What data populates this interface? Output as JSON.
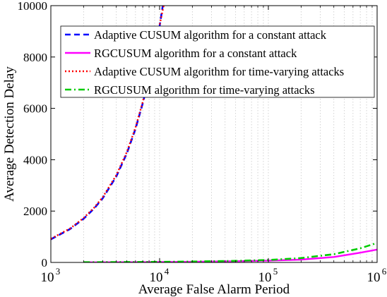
{
  "chart_data": {
    "type": "line",
    "title": "",
    "xlabel": "Average False Alarm Period",
    "ylabel": "Average Detection Delay",
    "xscale": "log",
    "xlim": [
      1000,
      1000000
    ],
    "ylim": [
      0,
      10000
    ],
    "xticks": [
      {
        "value": 1000,
        "base": "10",
        "exp": "3"
      },
      {
        "value": 10000,
        "base": "10",
        "exp": "4"
      },
      {
        "value": 100000,
        "base": "10",
        "exp": "5"
      },
      {
        "value": 1000000,
        "base": "10",
        "exp": "6"
      }
    ],
    "yticks": [
      {
        "value": 0,
        "label": "0"
      },
      {
        "value": 2000,
        "label": "2000"
      },
      {
        "value": 4000,
        "label": "4000"
      },
      {
        "value": 6000,
        "label": "6000"
      },
      {
        "value": 8000,
        "label": "8000"
      },
      {
        "value": 10000,
        "label": "10000"
      }
    ],
    "grid": "x-minor-dotted",
    "legend_position": "top-right",
    "series": [
      {
        "name": "Adaptive CUSUM algorithm for a constant attack",
        "color": "#0000ff",
        "style": "dashed",
        "x": [
          1000,
          1500,
          2000,
          2500,
          3000,
          4000,
          5000,
          6000,
          7000,
          8000,
          9000,
          10000,
          10700
        ],
        "y": [
          900,
          1300,
          1700,
          2100,
          2500,
          3350,
          4250,
          5200,
          6200,
          7200,
          8200,
          9200,
          10000
        ]
      },
      {
        "name": "RGCUSUM algorithm for a constant attack",
        "color": "#ff00ff",
        "style": "solid",
        "x": [
          2000,
          5000,
          10000,
          20000,
          50000,
          100000,
          200000,
          400000,
          700000,
          1000000
        ],
        "y": [
          5,
          10,
          15,
          25,
          45,
          70,
          110,
          210,
          380,
          500
        ]
      },
      {
        "name": "Adaptive CUSUM algorithm for time-varying attacks",
        "color": "#ff0000",
        "style": "dotted",
        "x": [
          1000,
          1500,
          2000,
          2500,
          3000,
          4000,
          5000,
          6000,
          7000,
          8000,
          9000,
          10000,
          10900
        ],
        "y": [
          920,
          1320,
          1730,
          2130,
          2540,
          3400,
          4300,
          5250,
          6250,
          7250,
          8250,
          9250,
          10000
        ]
      },
      {
        "name": "RGCUSUM algorithm for time-varying attacks",
        "color": "#00cc00",
        "style": "dashdot",
        "x": [
          2000,
          5000,
          10000,
          20000,
          50000,
          100000,
          200000,
          400000,
          700000,
          1000000
        ],
        "y": [
          8,
          15,
          22,
          35,
          60,
          95,
          170,
          320,
          550,
          760
        ]
      }
    ]
  }
}
